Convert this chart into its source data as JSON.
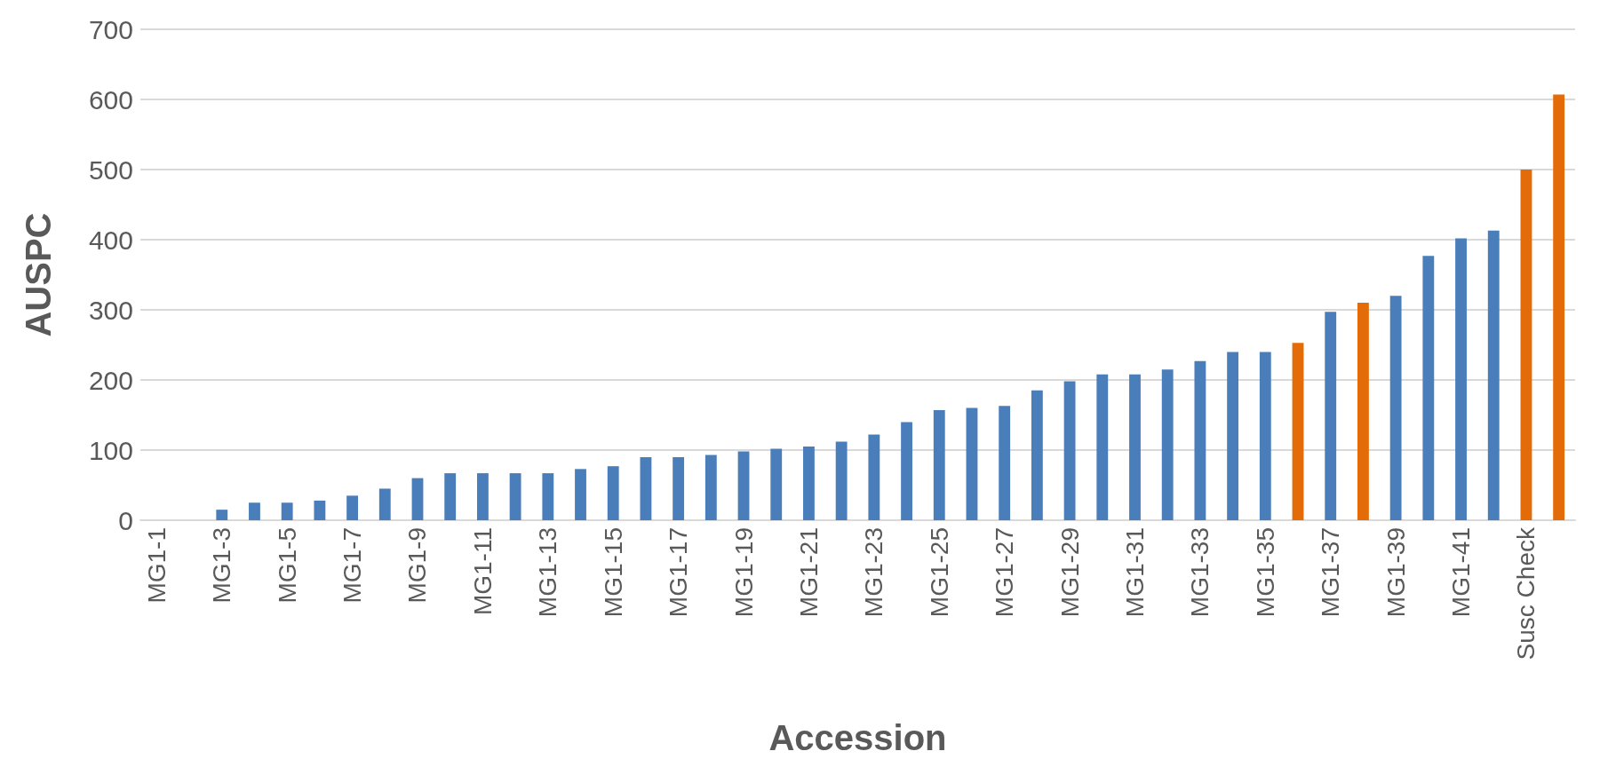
{
  "chart_data": {
    "type": "bar",
    "xlabel": "Accession",
    "ylabel": "AUSPC",
    "categories": [
      "MG1-1",
      null,
      "MG1-3",
      null,
      "MG1-5",
      null,
      "MG1-7",
      null,
      "MG1-9",
      null,
      "MG1-11",
      null,
      "MG1-13",
      null,
      "MG1-15",
      null,
      "MG1-17",
      null,
      "MG1-19",
      null,
      "MG1-21",
      null,
      "MG1-23",
      null,
      "MG1-25",
      null,
      "MG1-27",
      null,
      "MG1-29",
      null,
      "MG1-31",
      null,
      "MG1-33",
      null,
      "MG1-35",
      null,
      "MG1-37",
      null,
      "MG1-39",
      null,
      "MG1-41",
      null,
      "Susc Check",
      null
    ],
    "values": [
      0,
      0,
      15,
      25,
      25,
      28,
      35,
      45,
      60,
      67,
      67,
      67,
      67,
      73,
      77,
      90,
      90,
      93,
      98,
      102,
      105,
      112,
      122,
      140,
      157,
      160,
      163,
      185,
      198,
      208,
      208,
      215,
      227,
      240,
      240,
      253,
      297,
      310,
      320,
      377,
      402,
      413,
      500,
      607
    ],
    "colors": [
      "#4a7ebb",
      "#4a7ebb",
      "#4a7ebb",
      "#4a7ebb",
      "#4a7ebb",
      "#4a7ebb",
      "#4a7ebb",
      "#4a7ebb",
      "#4a7ebb",
      "#4a7ebb",
      "#4a7ebb",
      "#4a7ebb",
      "#4a7ebb",
      "#4a7ebb",
      "#4a7ebb",
      "#4a7ebb",
      "#4a7ebb",
      "#4a7ebb",
      "#4a7ebb",
      "#4a7ebb",
      "#4a7ebb",
      "#4a7ebb",
      "#4a7ebb",
      "#4a7ebb",
      "#4a7ebb",
      "#4a7ebb",
      "#4a7ebb",
      "#4a7ebb",
      "#4a7ebb",
      "#4a7ebb",
      "#4a7ebb",
      "#4a7ebb",
      "#4a7ebb",
      "#4a7ebb",
      "#4a7ebb",
      "#e36c09",
      "#4a7ebb",
      "#e36c09",
      "#4a7ebb",
      "#4a7ebb",
      "#4a7ebb",
      "#4a7ebb",
      "#e36c09",
      "#e36c09"
    ],
    "ylim": [
      0,
      700
    ],
    "yticks": [
      0,
      100,
      200,
      300,
      400,
      500,
      600,
      700
    ],
    "grid": "y"
  }
}
